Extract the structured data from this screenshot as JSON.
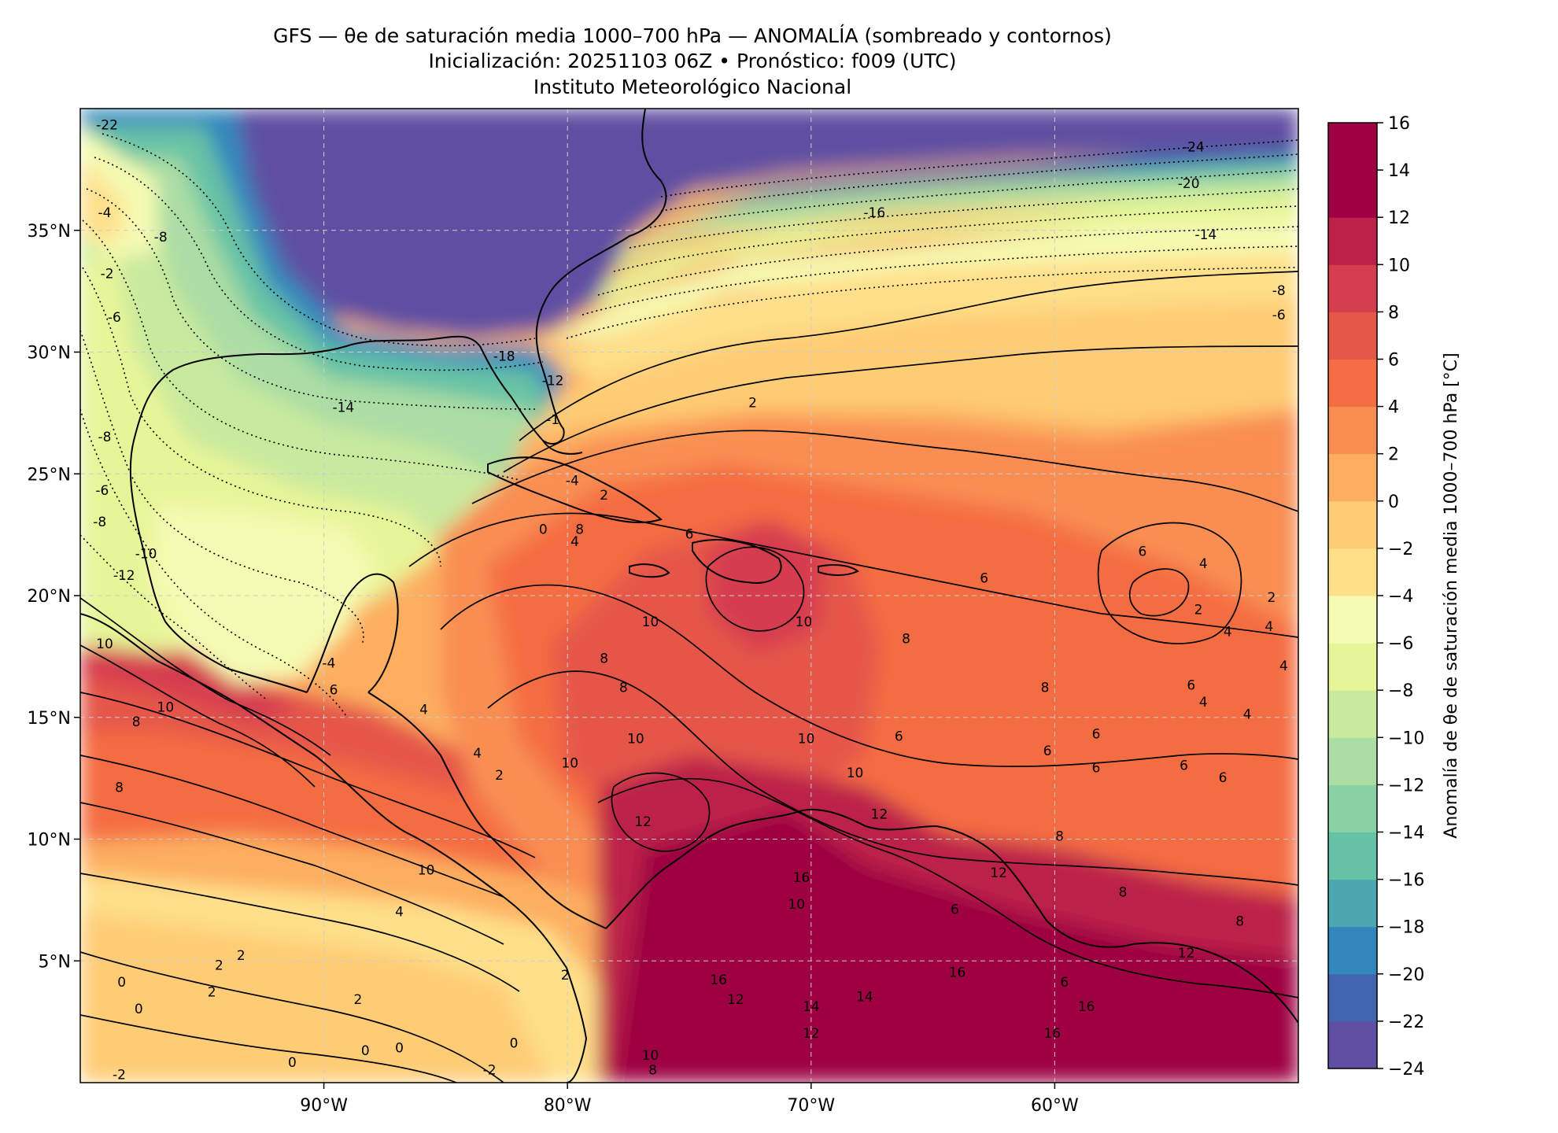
{
  "header": {
    "title_line1": "GFS — θe de saturación media 1000–700 hPa — ANOMALÍA (sombreado y contornos)",
    "title_line2": "Inicialización: 20251103 06Z   •   Pronóstico: f009 (UTC)",
    "title_line3": "Instituto Meteorológico Nacional"
  },
  "map": {
    "lon_range": [
      -100,
      -50
    ],
    "lat_range": [
      0,
      40
    ],
    "x_ticks": [
      {
        "value": -90,
        "label": "90°W"
      },
      {
        "value": -80,
        "label": "80°W"
      },
      {
        "value": -70,
        "label": "70°W"
      },
      {
        "value": -60,
        "label": "60°W"
      }
    ],
    "y_ticks": [
      {
        "value": 35,
        "label": "35°N"
      },
      {
        "value": 30,
        "label": "30°N"
      },
      {
        "value": 25,
        "label": "25°N"
      },
      {
        "value": 20,
        "label": "20°N"
      },
      {
        "value": 15,
        "label": "15°N"
      },
      {
        "value": 10,
        "label": "10°N"
      },
      {
        "value": 5,
        "label": "5°N"
      }
    ],
    "gridlines": true
  },
  "colorbar": {
    "label": "Anomalía de θe de saturación media 1000–700 hPa [°C]",
    "min": -24,
    "max": 16,
    "step": 2,
    "tick_labels": [
      "16",
      "14",
      "12",
      "10",
      "8",
      "6",
      "4",
      "2",
      "0",
      "−2",
      "−4",
      "−6",
      "−8",
      "−10",
      "−12",
      "−14",
      "−16",
      "−18",
      "−20",
      "−22",
      "−24"
    ],
    "colors": [
      "#5e4fa2",
      "#4265b0",
      "#3288bd",
      "#4ba7b0",
      "#66c2a5",
      "#89d0a4",
      "#abdda4",
      "#c8e99e",
      "#e6f598",
      "#f5fbb2",
      "#fee08b",
      "#fecc75",
      "#fdae61",
      "#f98e52",
      "#f46d43",
      "#e55749",
      "#d53e4f",
      "#bc2249",
      "#9e0142",
      "#9e0142"
    ]
  },
  "contour_labels": [
    {
      "text": "-22",
      "lon": -98.9,
      "lat": 39.3
    },
    {
      "text": "-24",
      "lon": -54.3,
      "lat": 38.4
    },
    {
      "text": "-20",
      "lon": -54.5,
      "lat": 36.9
    },
    {
      "text": "-16",
      "lon": -67.4,
      "lat": 35.7
    },
    {
      "text": "-14",
      "lon": -53.8,
      "lat": 34.8
    },
    {
      "text": "-8",
      "lon": -50.8,
      "lat": 32.5
    },
    {
      "text": "-6",
      "lon": -50.8,
      "lat": 31.5
    },
    {
      "text": "-4",
      "lon": -99.0,
      "lat": 35.7
    },
    {
      "text": "-2",
      "lon": -98.9,
      "lat": 33.2
    },
    {
      "text": "-8",
      "lon": -96.7,
      "lat": 34.7
    },
    {
      "text": "-6",
      "lon": -98.6,
      "lat": 31.4
    },
    {
      "text": "-18",
      "lon": -82.6,
      "lat": 29.8
    },
    {
      "text": "-12",
      "lon": -80.6,
      "lat": 28.8
    },
    {
      "text": "-14",
      "lon": -89.2,
      "lat": 27.7
    },
    {
      "text": "-8",
      "lon": -99.0,
      "lat": 26.5
    },
    {
      "text": "-6",
      "lon": -99.1,
      "lat": 24.3
    },
    {
      "text": "-8",
      "lon": -99.2,
      "lat": 23.0
    },
    {
      "text": "-10",
      "lon": -97.3,
      "lat": 21.7
    },
    {
      "text": "-12",
      "lon": -98.2,
      "lat": 20.8
    },
    {
      "text": "-4",
      "lon": -89.8,
      "lat": 17.2
    },
    {
      "text": "6",
      "lon": -89.6,
      "lat": 16.1
    },
    {
      "text": "-1",
      "lon": -80.6,
      "lat": 27.2
    },
    {
      "text": "-4",
      "lon": -79.8,
      "lat": 24.7
    },
    {
      "text": "2",
      "lon": -78.5,
      "lat": 24.1
    },
    {
      "text": "0",
      "lon": -81.0,
      "lat": 22.7
    },
    {
      "text": "4",
      "lon": -79.7,
      "lat": 22.2
    },
    {
      "text": "2",
      "lon": -72.4,
      "lat": 27.9
    },
    {
      "text": "8",
      "lon": -79.5,
      "lat": 22.7
    },
    {
      "text": "10",
      "lon": -99.0,
      "lat": 18.0
    },
    {
      "text": "10",
      "lon": -96.5,
      "lat": 15.4
    },
    {
      "text": "8",
      "lon": -97.7,
      "lat": 14.8
    },
    {
      "text": "8",
      "lon": -98.4,
      "lat": 12.1
    },
    {
      "text": "10",
      "lon": -76.6,
      "lat": 18.9
    },
    {
      "text": "8",
      "lon": -78.5,
      "lat": 17.4
    },
    {
      "text": "8",
      "lon": -77.7,
      "lat": 16.2
    },
    {
      "text": "6",
      "lon": -75.0,
      "lat": 22.5
    },
    {
      "text": "6",
      "lon": -62.9,
      "lat": 20.7
    },
    {
      "text": "6",
      "lon": -56.4,
      "lat": 21.8
    },
    {
      "text": "8",
      "lon": -66.1,
      "lat": 18.2
    },
    {
      "text": "2",
      "lon": -54.1,
      "lat": 19.4
    },
    {
      "text": "4",
      "lon": -52.9,
      "lat": 18.5
    },
    {
      "text": "4",
      "lon": -53.9,
      "lat": 21.3
    },
    {
      "text": "2",
      "lon": -51.1,
      "lat": 19.9
    },
    {
      "text": "4",
      "lon": -51.2,
      "lat": 18.7
    },
    {
      "text": "6",
      "lon": -54.4,
      "lat": 16.3
    },
    {
      "text": "4",
      "lon": -53.9,
      "lat": 15.6
    },
    {
      "text": "4",
      "lon": -50.6,
      "lat": 17.1
    },
    {
      "text": "4",
      "lon": -52.1,
      "lat": 15.1
    },
    {
      "text": "8",
      "lon": -60.4,
      "lat": 16.2
    },
    {
      "text": "6",
      "lon": -58.3,
      "lat": 14.3
    },
    {
      "text": "6",
      "lon": -60.3,
      "lat": 13.6
    },
    {
      "text": "6",
      "lon": -58.3,
      "lat": 12.9
    },
    {
      "text": "6",
      "lon": -54.7,
      "lat": 13.0
    },
    {
      "text": "6",
      "lon": -53.1,
      "lat": 12.5
    },
    {
      "text": "10",
      "lon": -68.2,
      "lat": 12.7
    },
    {
      "text": "6",
      "lon": -66.4,
      "lat": 14.2
    },
    {
      "text": "10",
      "lon": -70.2,
      "lat": 14.1
    },
    {
      "text": "10",
      "lon": -77.2,
      "lat": 14.1
    },
    {
      "text": "12",
      "lon": -76.9,
      "lat": 10.7
    },
    {
      "text": "2",
      "lon": -82.8,
      "lat": 12.6
    },
    {
      "text": "4",
      "lon": -83.7,
      "lat": 13.5
    },
    {
      "text": "4",
      "lon": -85.9,
      "lat": 15.3
    },
    {
      "text": "8",
      "lon": -59.8,
      "lat": 10.1
    },
    {
      "text": "12",
      "lon": -62.3,
      "lat": 8.6
    },
    {
      "text": "6",
      "lon": -64.1,
      "lat": 7.1
    },
    {
      "text": "8",
      "lon": -57.2,
      "lat": 7.8
    },
    {
      "text": "8",
      "lon": -52.4,
      "lat": 6.6
    },
    {
      "text": "12",
      "lon": -54.6,
      "lat": 5.3
    },
    {
      "text": "6",
      "lon": -59.6,
      "lat": 4.1
    },
    {
      "text": "16",
      "lon": -64.0,
      "lat": 4.5
    },
    {
      "text": "16",
      "lon": -58.7,
      "lat": 3.1
    },
    {
      "text": "16",
      "lon": -60.1,
      "lat": 2.0
    },
    {
      "text": "16",
      "lon": -73.8,
      "lat": 4.2
    },
    {
      "text": "16",
      "lon": -70.4,
      "lat": 8.4
    },
    {
      "text": "10",
      "lon": -70.6,
      "lat": 7.3
    },
    {
      "text": "14",
      "lon": -67.8,
      "lat": 3.5
    },
    {
      "text": "14",
      "lon": -70.0,
      "lat": 3.1
    },
    {
      "text": "12",
      "lon": -73.1,
      "lat": 3.4
    },
    {
      "text": "12",
      "lon": -70.0,
      "lat": 2.0
    },
    {
      "text": "10",
      "lon": -76.6,
      "lat": 1.1
    },
    {
      "text": "8",
      "lon": -76.5,
      "lat": 0.5
    },
    {
      "text": "10",
      "lon": -85.8,
      "lat": 8.7
    },
    {
      "text": "4",
      "lon": -86.9,
      "lat": 7.0
    },
    {
      "text": "2",
      "lon": -94.3,
      "lat": 4.8
    },
    {
      "text": "2",
      "lon": -93.4,
      "lat": 5.2
    },
    {
      "text": "2",
      "lon": -94.6,
      "lat": 3.7
    },
    {
      "text": "2",
      "lon": -88.6,
      "lat": 3.4
    },
    {
      "text": "2",
      "lon": -80.1,
      "lat": 4.4
    },
    {
      "text": "0",
      "lon": -98.3,
      "lat": 4.1
    },
    {
      "text": "0",
      "lon": -97.6,
      "lat": 3.0
    },
    {
      "text": "0",
      "lon": -88.3,
      "lat": 1.3
    },
    {
      "text": "0",
      "lon": -86.9,
      "lat": 1.4
    },
    {
      "text": "0",
      "lon": -82.2,
      "lat": 1.6
    },
    {
      "text": "0",
      "lon": -91.3,
      "lat": 0.8
    },
    {
      "text": "-2",
      "lon": -98.4,
      "lat": 0.3
    },
    {
      "text": "-2",
      "lon": -83.2,
      "lat": 0.5
    },
    {
      "text": "10",
      "lon": -79.9,
      "lat": 13.1
    },
    {
      "text": "10",
      "lon": -70.3,
      "lat": 18.9
    },
    {
      "text": "12",
      "lon": -67.2,
      "lat": 11.0
    }
  ]
}
